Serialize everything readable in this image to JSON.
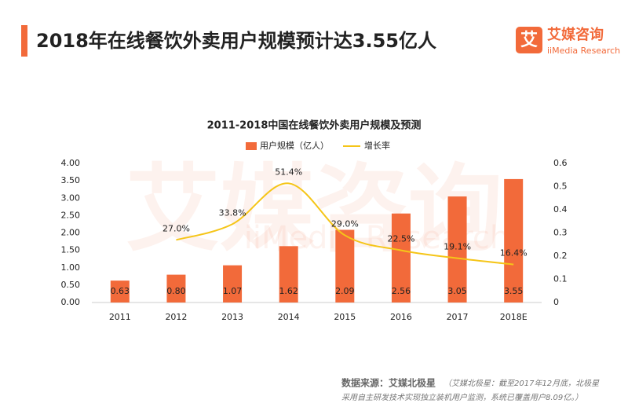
{
  "header": {
    "title": "2018年在线餐饮外卖用户规模预计达3.55亿人",
    "logo_icon": "艾",
    "logo_name": "艾媒咨询",
    "logo_sub": "iiMedia Research"
  },
  "watermark": {
    "name": "艾媒咨询",
    "sub": "iiMedia Research"
  },
  "chart_data": {
    "type": "bar",
    "title": "2011-2018中国在线餐饮外卖用户规模及预测",
    "categories": [
      "2011",
      "2012",
      "2013",
      "2014",
      "2015",
      "2016",
      "2017",
      "2018E"
    ],
    "series": [
      {
        "name": "用户规模（亿人）",
        "color": "#f26a3a",
        "type": "bar",
        "values": [
          0.63,
          0.8,
          1.07,
          1.62,
          2.09,
          2.56,
          3.05,
          3.55
        ],
        "value_labels": [
          "0.63",
          "0.80",
          "1.07",
          "1.62",
          "2.09",
          "2.56",
          "3.05",
          "3.55"
        ]
      },
      {
        "name": "增长率",
        "color": "#f5c518",
        "type": "line",
        "axis": "y2",
        "values": [
          null,
          0.27,
          0.338,
          0.514,
          0.29,
          0.225,
          0.191,
          0.164
        ],
        "value_labels": [
          null,
          "27.0%",
          "33.8%",
          "51.4%",
          "29.0%",
          "22.5%",
          "19.1%",
          "16.4%"
        ]
      }
    ],
    "ylim": [
      0,
      4
    ],
    "yticks": [
      {
        "value": 0,
        "label": "0.00"
      },
      {
        "value": 0.5,
        "label": "0.50"
      },
      {
        "value": 1,
        "label": "1.00"
      },
      {
        "value": 1.5,
        "label": "1.50"
      },
      {
        "value": 2,
        "label": "2.00"
      },
      {
        "value": 2.5,
        "label": "2.50"
      },
      {
        "value": 3,
        "label": "3.00"
      },
      {
        "value": 3.5,
        "label": "3.50"
      },
      {
        "value": 4,
        "label": "4.00"
      }
    ],
    "y2lim": [
      0,
      0.6
    ],
    "y2ticks": [
      0,
      0.1,
      0.2,
      0.3,
      0.4,
      0.5,
      0.6
    ],
    "legend": "top"
  },
  "source": {
    "label": "数据来源：艾媒北极星",
    "note_lines": [
      "（艾媒北极星：截至2017年12月底，北极星",
      "采用自主研发技术实现独立装机用户监测，系统已覆盖用户8.09亿。）"
    ]
  }
}
